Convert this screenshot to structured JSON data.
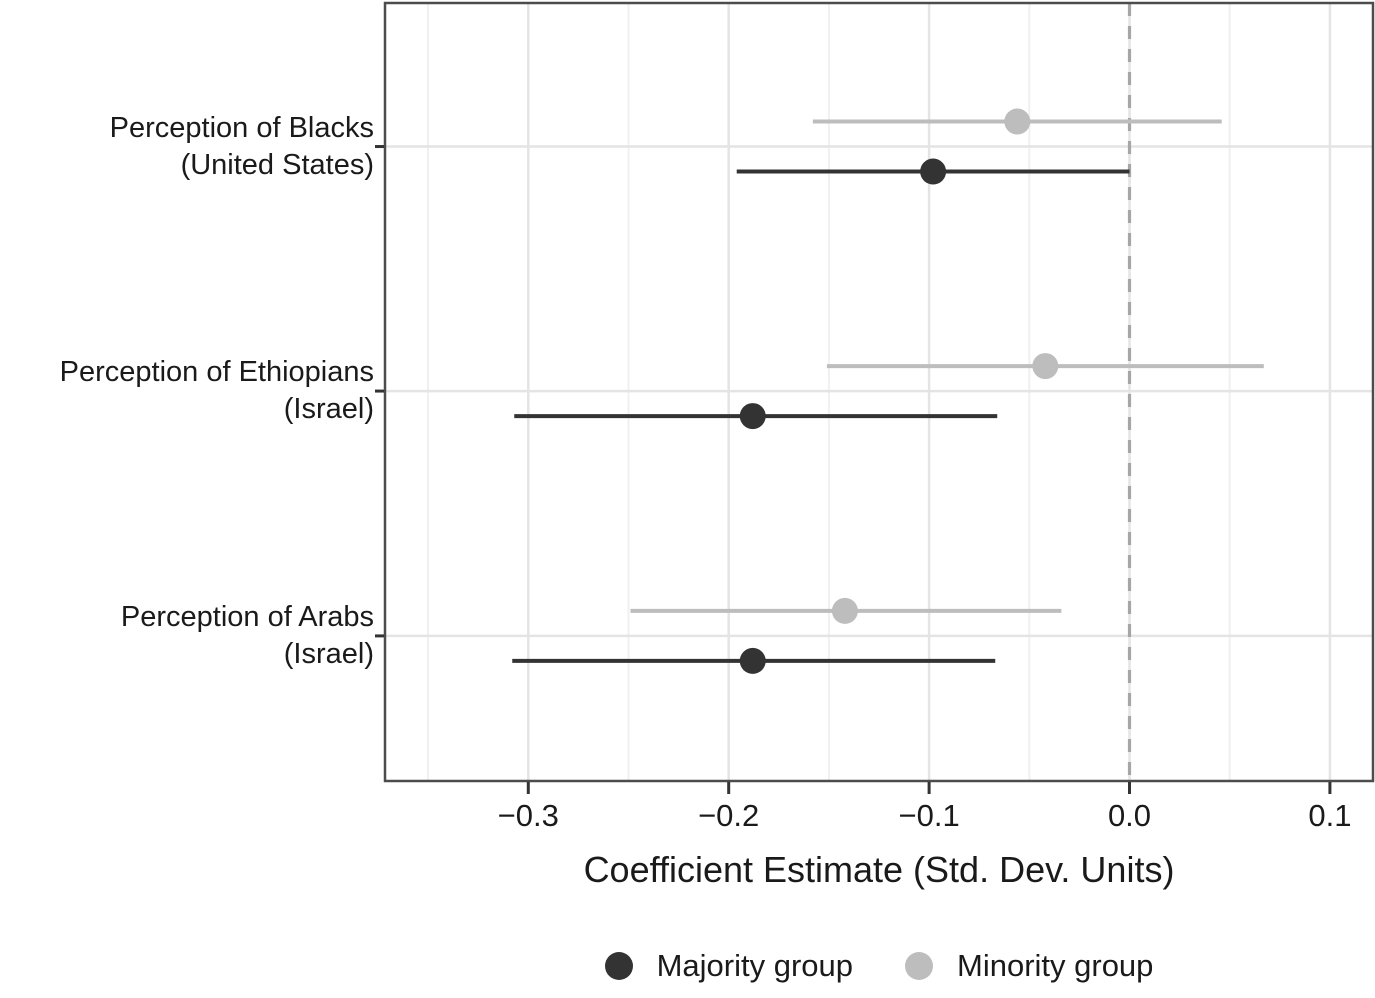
{
  "chart_data": {
    "type": "scatter",
    "subtype": "dot-and-whisker coefficient plot",
    "title": "",
    "xlabel": "Coefficient Estimate (Std. Dev. Units)",
    "ylabel": "",
    "xlim": [
      -0.3715,
      0.1215
    ],
    "grid": true,
    "legend_position": "bottom",
    "x_ticks": [
      {
        "value": -0.3,
        "label": "−0.3"
      },
      {
        "value": -0.2,
        "label": "−0.2"
      },
      {
        "value": -0.1,
        "label": "−0.1"
      },
      {
        "value": 0.0,
        "label": "0.0"
      },
      {
        "value": 0.1,
        "label": "0.1"
      }
    ],
    "x_minor_ticks": [
      -0.35,
      -0.25,
      -0.15,
      -0.05,
      0.05
    ],
    "zero_reference_line": {
      "value": 0.0,
      "style": "dashed",
      "color": "#a6a6a6"
    },
    "categories": [
      {
        "label_line1": "Perception of Blacks",
        "label_line2": "(United States)"
      },
      {
        "label_line1": "Perception of Ethiopians",
        "label_line2": "(Israel)"
      },
      {
        "label_line1": "Perception of Arabs",
        "label_line2": "(Israel)"
      }
    ],
    "series": [
      {
        "name": "Majority group",
        "color": "#333333",
        "dodge": "below",
        "points": [
          {
            "category": "Perception of Blacks (United States)",
            "estimate": -0.098,
            "ci_low": -0.196,
            "ci_high": 0.0
          },
          {
            "category": "Perception of Ethiopians (Israel)",
            "estimate": -0.188,
            "ci_low": -0.307,
            "ci_high": -0.066
          },
          {
            "category": "Perception of Arabs (Israel)",
            "estimate": -0.188,
            "ci_low": -0.308,
            "ci_high": -0.067
          }
        ]
      },
      {
        "name": "Minority group",
        "color": "#bdbdbd",
        "dodge": "above",
        "points": [
          {
            "category": "Perception of Blacks (United States)",
            "estimate": -0.056,
            "ci_low": -0.158,
            "ci_high": 0.046
          },
          {
            "category": "Perception of Ethiopians (Israel)",
            "estimate": -0.042,
            "ci_low": -0.151,
            "ci_high": 0.067
          },
          {
            "category": "Perception of Arabs (Israel)",
            "estimate": -0.142,
            "ci_low": -0.249,
            "ci_high": -0.034
          }
        ]
      }
    ]
  },
  "colors": {
    "majority": "#333333",
    "minority": "#bdbdbd",
    "panel_border": "#4c4c4c",
    "grid_major": "#e4e4e4",
    "grid_minor": "#f0f0f0",
    "zero_line": "#a6a6a6",
    "tick": "#333333",
    "text": "#1a1a1a",
    "background": "#ffffff"
  }
}
